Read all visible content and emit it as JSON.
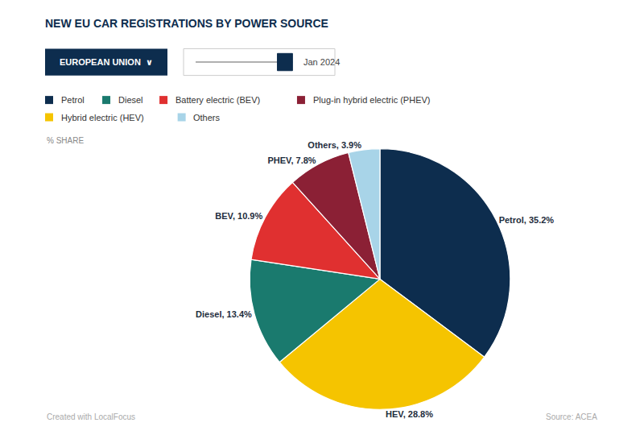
{
  "chart_data": {
    "type": "pie",
    "title": "NEW EU CAR REGISTRATIONS BY POWER SOURCE",
    "categories": [
      "Petrol",
      "HEV",
      "Diesel",
      "BEV",
      "PHEV",
      "Others"
    ],
    "values": [
      35.2,
      28.8,
      13.4,
      10.9,
      7.8,
      3.9
    ],
    "colors": [
      "#0d2d4e",
      "#f5c400",
      "#1a7a6e",
      "#e03030",
      "#8b2035",
      "#a8d4e8"
    ],
    "value_labels": [
      "Petrol, 35.2%",
      "HEV, 28.8%",
      "Diesel, 13.4%",
      "BEV, 10.9%",
      "PHEV, 7.8%",
      "Others, 3.9%"
    ],
    "data_labels": true,
    "legend_items": [
      {
        "name": "Petrol",
        "color": "#0d2d4e"
      },
      {
        "name": "Diesel",
        "color": "#1a7a6e"
      },
      {
        "name": "Battery electric (BEV)",
        "color": "#e03030"
      },
      {
        "name": "Plug-in hybrid electric (PHEV)",
        "color": "#8b2035"
      },
      {
        "name": "Hybrid electric (HEV)",
        "color": "#f5c400"
      },
      {
        "name": "Others",
        "color": "#a8d4e8"
      }
    ],
    "annotations": [
      "EUROPEAN UNION  ∨",
      "Jan 2024",
      "% SHARE",
      "Created with LocalFocus",
      "Source: ACEA"
    ]
  }
}
